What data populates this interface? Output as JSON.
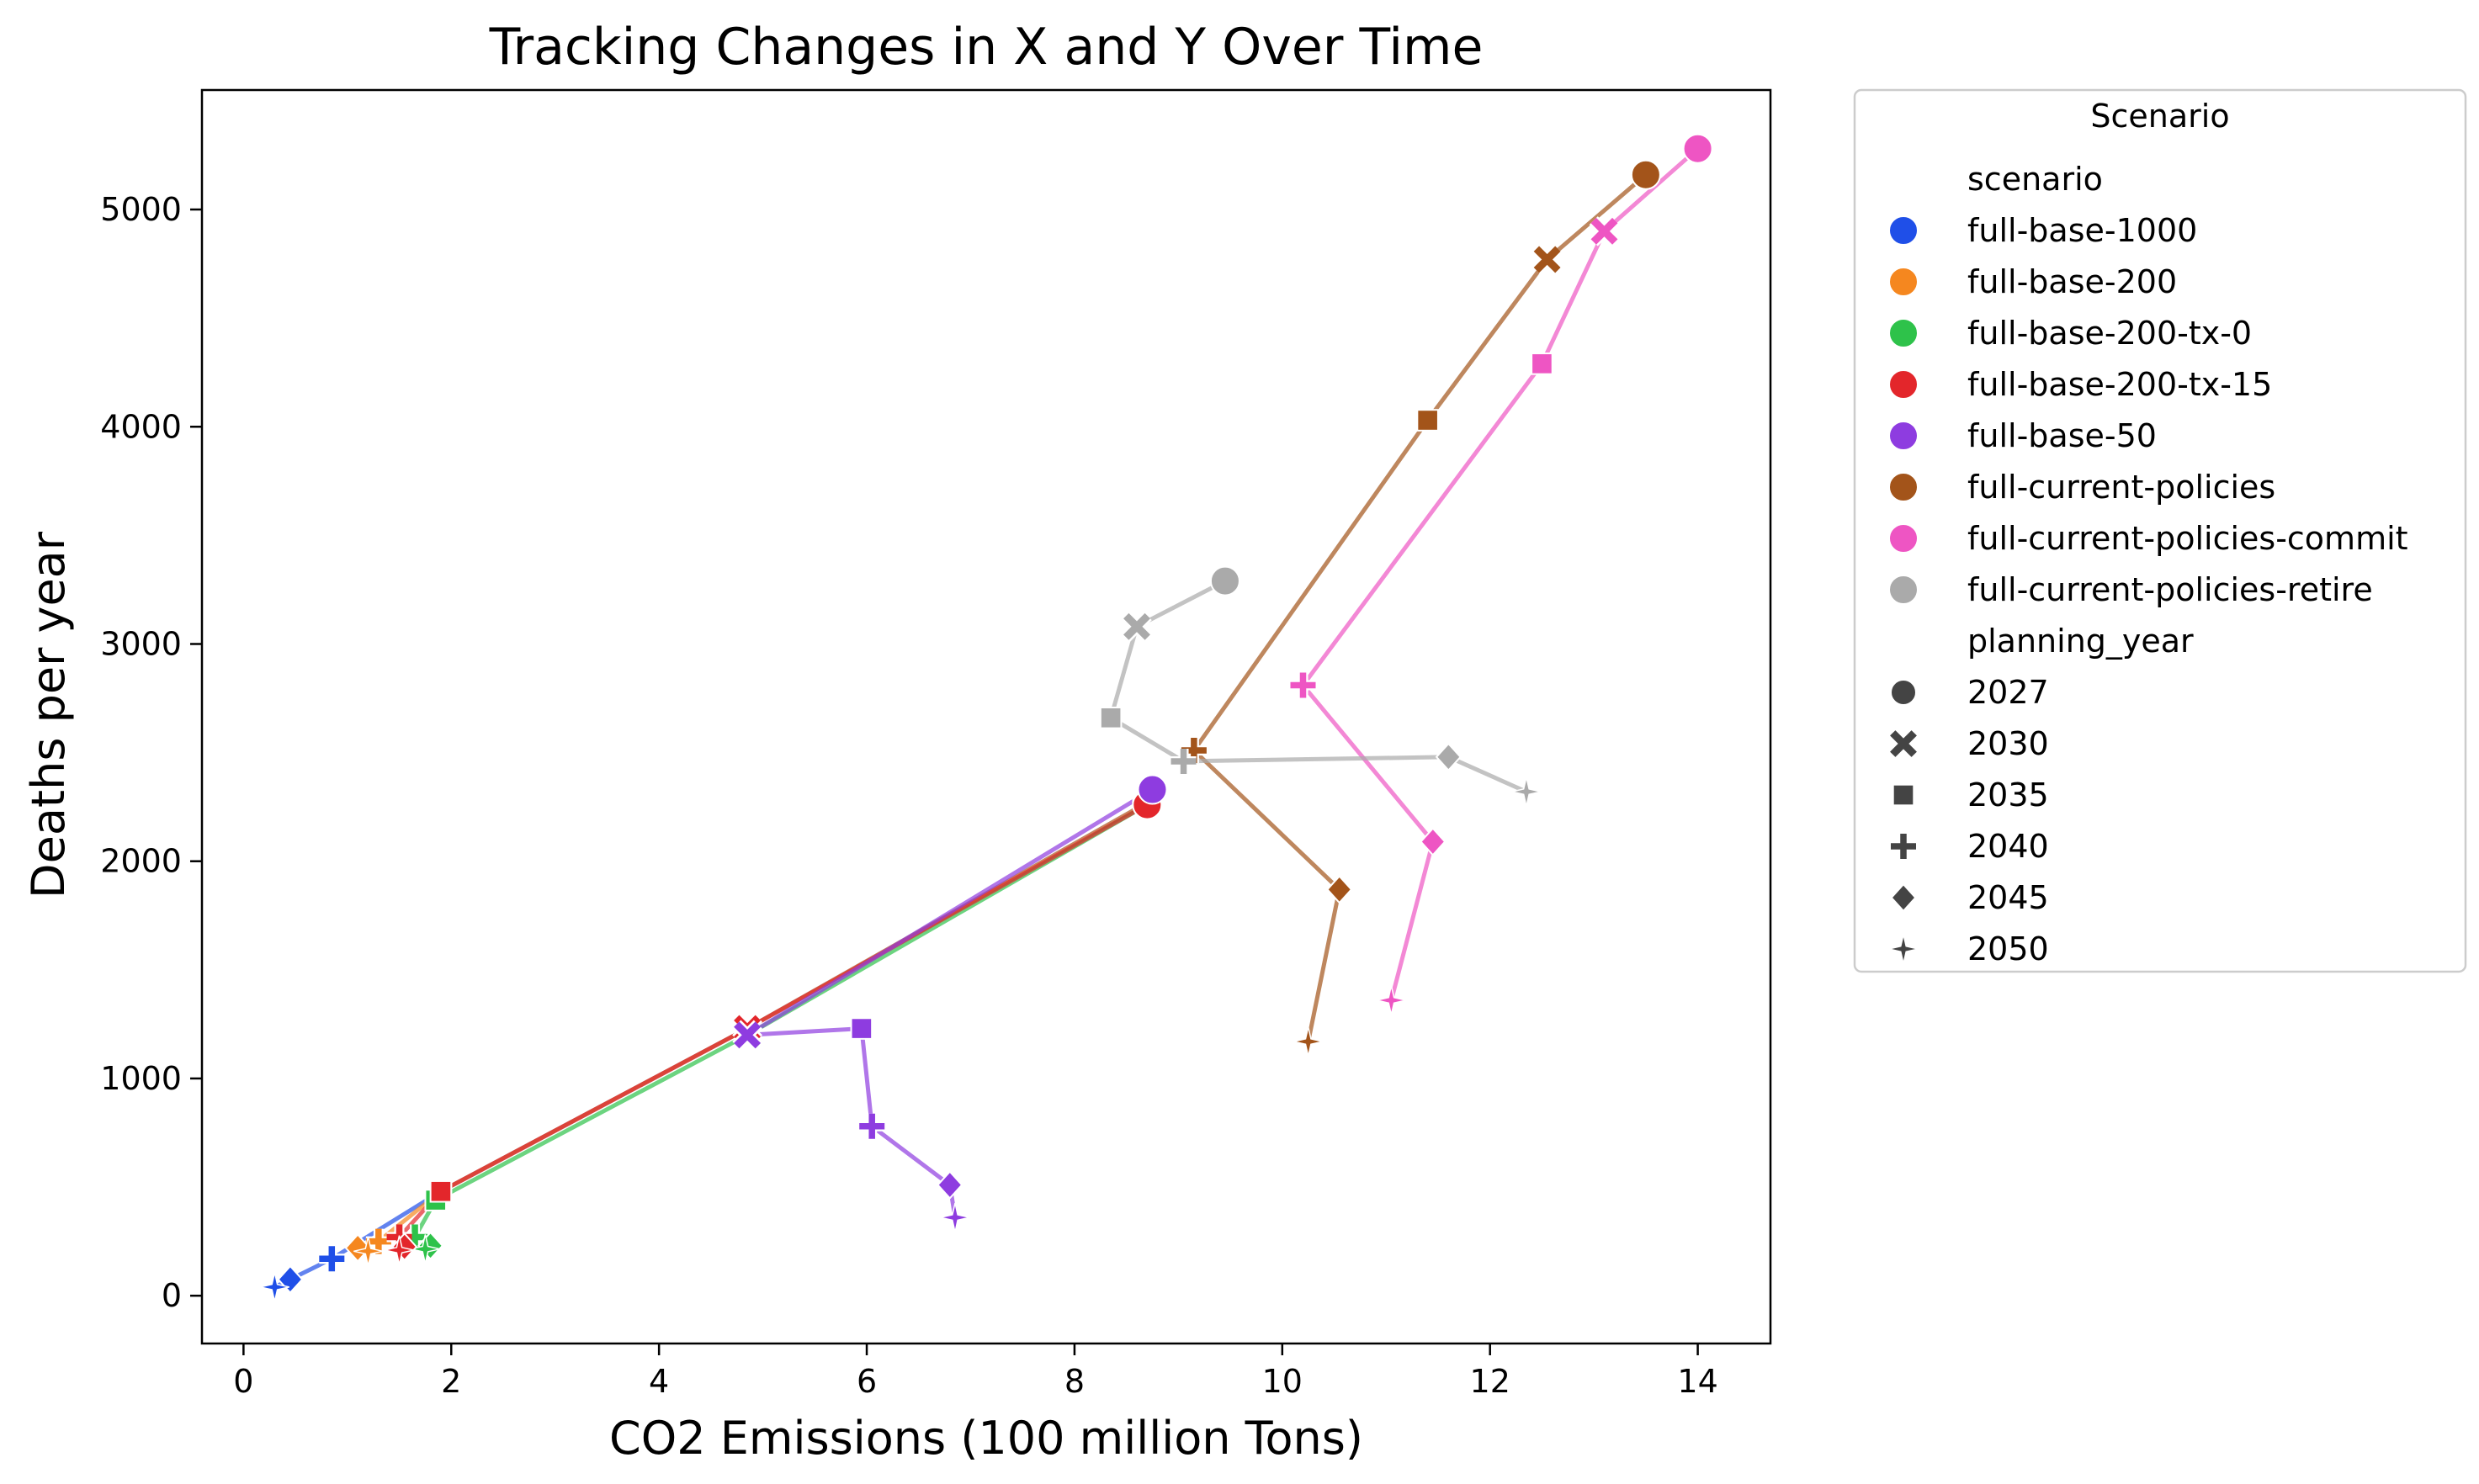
{
  "chart_data": {
    "type": "scatter",
    "title": "Tracking Changes in X and Y Over Time",
    "xlabel": "CO2 Emissions (100 million Tons)",
    "ylabel": "Deaths per year",
    "xlim": [
      -0.4,
      14.7
    ],
    "ylim": [
      -220,
      5550
    ],
    "x_ticks": [
      0,
      2,
      4,
      6,
      8,
      10,
      12,
      14
    ],
    "y_ticks": [
      0,
      1000,
      2000,
      3000,
      4000,
      5000
    ],
    "grid": false,
    "legend": {
      "title": "Scenario",
      "placement": "outside-right",
      "hue_heading": "scenario",
      "style_heading": "planning_year"
    },
    "planning_years": [
      {
        "label": "2027",
        "marker": "circle"
      },
      {
        "label": "2030",
        "marker": "x"
      },
      {
        "label": "2035",
        "marker": "square"
      },
      {
        "label": "2040",
        "marker": "plus"
      },
      {
        "label": "2045",
        "marker": "diamond"
      },
      {
        "label": "2050",
        "marker": "star"
      }
    ],
    "series": [
      {
        "name": "full-base-1000",
        "color": "#1f4fe8",
        "points": [
          [
            8.7,
            2270
          ],
          [
            4.85,
            1230
          ],
          [
            1.9,
            480
          ],
          [
            0.85,
            170
          ],
          [
            0.45,
            75
          ],
          [
            0.3,
            40
          ]
        ]
      },
      {
        "name": "full-base-200",
        "color": "#f5871f",
        "points": [
          [
            8.7,
            2270
          ],
          [
            4.85,
            1230
          ],
          [
            1.9,
            480
          ],
          [
            1.3,
            250
          ],
          [
            1.1,
            220
          ],
          [
            1.2,
            205
          ]
        ]
      },
      {
        "name": "full-base-200-tx-0",
        "color": "#2ec24a",
        "points": [
          [
            8.7,
            2260
          ],
          [
            4.85,
            1200
          ],
          [
            1.85,
            440
          ],
          [
            1.65,
            270
          ],
          [
            1.8,
            230
          ],
          [
            1.75,
            215
          ]
        ]
      },
      {
        "name": "full-base-200-tx-15",
        "color": "#e3262b",
        "points": [
          [
            8.7,
            2260
          ],
          [
            4.85,
            1230
          ],
          [
            1.9,
            480
          ],
          [
            1.5,
            270
          ],
          [
            1.55,
            225
          ],
          [
            1.5,
            210
          ]
        ]
      },
      {
        "name": "full-base-50",
        "color": "#8e3ce0",
        "points": [
          [
            8.75,
            2330
          ],
          [
            4.85,
            1200
          ],
          [
            5.95,
            1230
          ],
          [
            6.05,
            780
          ],
          [
            6.8,
            510
          ],
          [
            6.85,
            360
          ]
        ]
      },
      {
        "name": "full-current-policies",
        "color": "#a3541a",
        "points": [
          [
            13.5,
            5160
          ],
          [
            12.55,
            4770
          ],
          [
            11.4,
            4030
          ],
          [
            9.15,
            2510
          ],
          [
            10.55,
            1870
          ],
          [
            10.25,
            1170
          ]
        ]
      },
      {
        "name": "full-current-policies-commit",
        "color": "#ee55c3",
        "points": [
          [
            14.0,
            5280
          ],
          [
            13.1,
            4900
          ],
          [
            12.5,
            4290
          ],
          [
            10.2,
            2810
          ],
          [
            11.45,
            2090
          ],
          [
            11.05,
            1360
          ]
        ]
      },
      {
        "name": "full-current-policies-retire",
        "color": "#aaaaaa",
        "points": [
          [
            9.45,
            3290
          ],
          [
            8.6,
            3080
          ],
          [
            8.35,
            2660
          ],
          [
            9.05,
            2460
          ],
          [
            11.6,
            2480
          ],
          [
            12.35,
            2320
          ]
        ]
      }
    ]
  }
}
